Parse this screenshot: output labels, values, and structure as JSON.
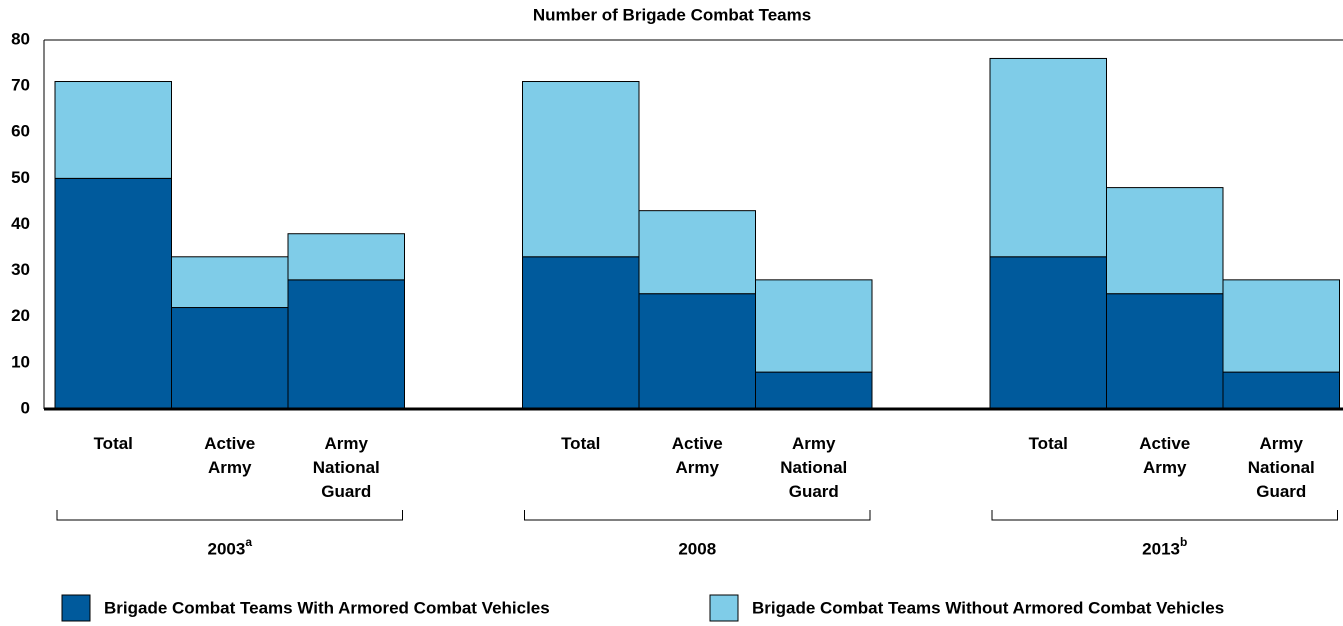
{
  "chart_data": {
    "type": "stacked-bar",
    "title": "Number of Brigade Combat Teams",
    "categories": [
      "Total",
      "Active Army",
      "Army National Guard",
      "Total",
      "Active Army",
      "Army National Guard",
      "Total",
      "Active Army",
      "Army National Guard"
    ],
    "groups": [
      {
        "label": "2003",
        "note": "a"
      },
      {
        "label": "2008"
      },
      {
        "label": "2013",
        "note": "b"
      }
    ],
    "series": [
      {
        "name": "Brigade Combat Teams With Armored Combat Vehicles",
        "color": "#005a9c",
        "values": [
          50,
          22,
          28,
          33,
          25,
          8,
          33,
          25,
          8
        ]
      },
      {
        "name": "Brigade Combat Teams Without Armored Combat Vehicles",
        "color": "#7fcce8",
        "values": [
          21,
          11,
          10,
          38,
          18,
          20,
          43,
          23,
          20
        ]
      }
    ],
    "ylim": [
      0,
      80
    ],
    "yticks": [
      0,
      10,
      20,
      30,
      40,
      50,
      60,
      70,
      80
    ],
    "grid": false
  }
}
